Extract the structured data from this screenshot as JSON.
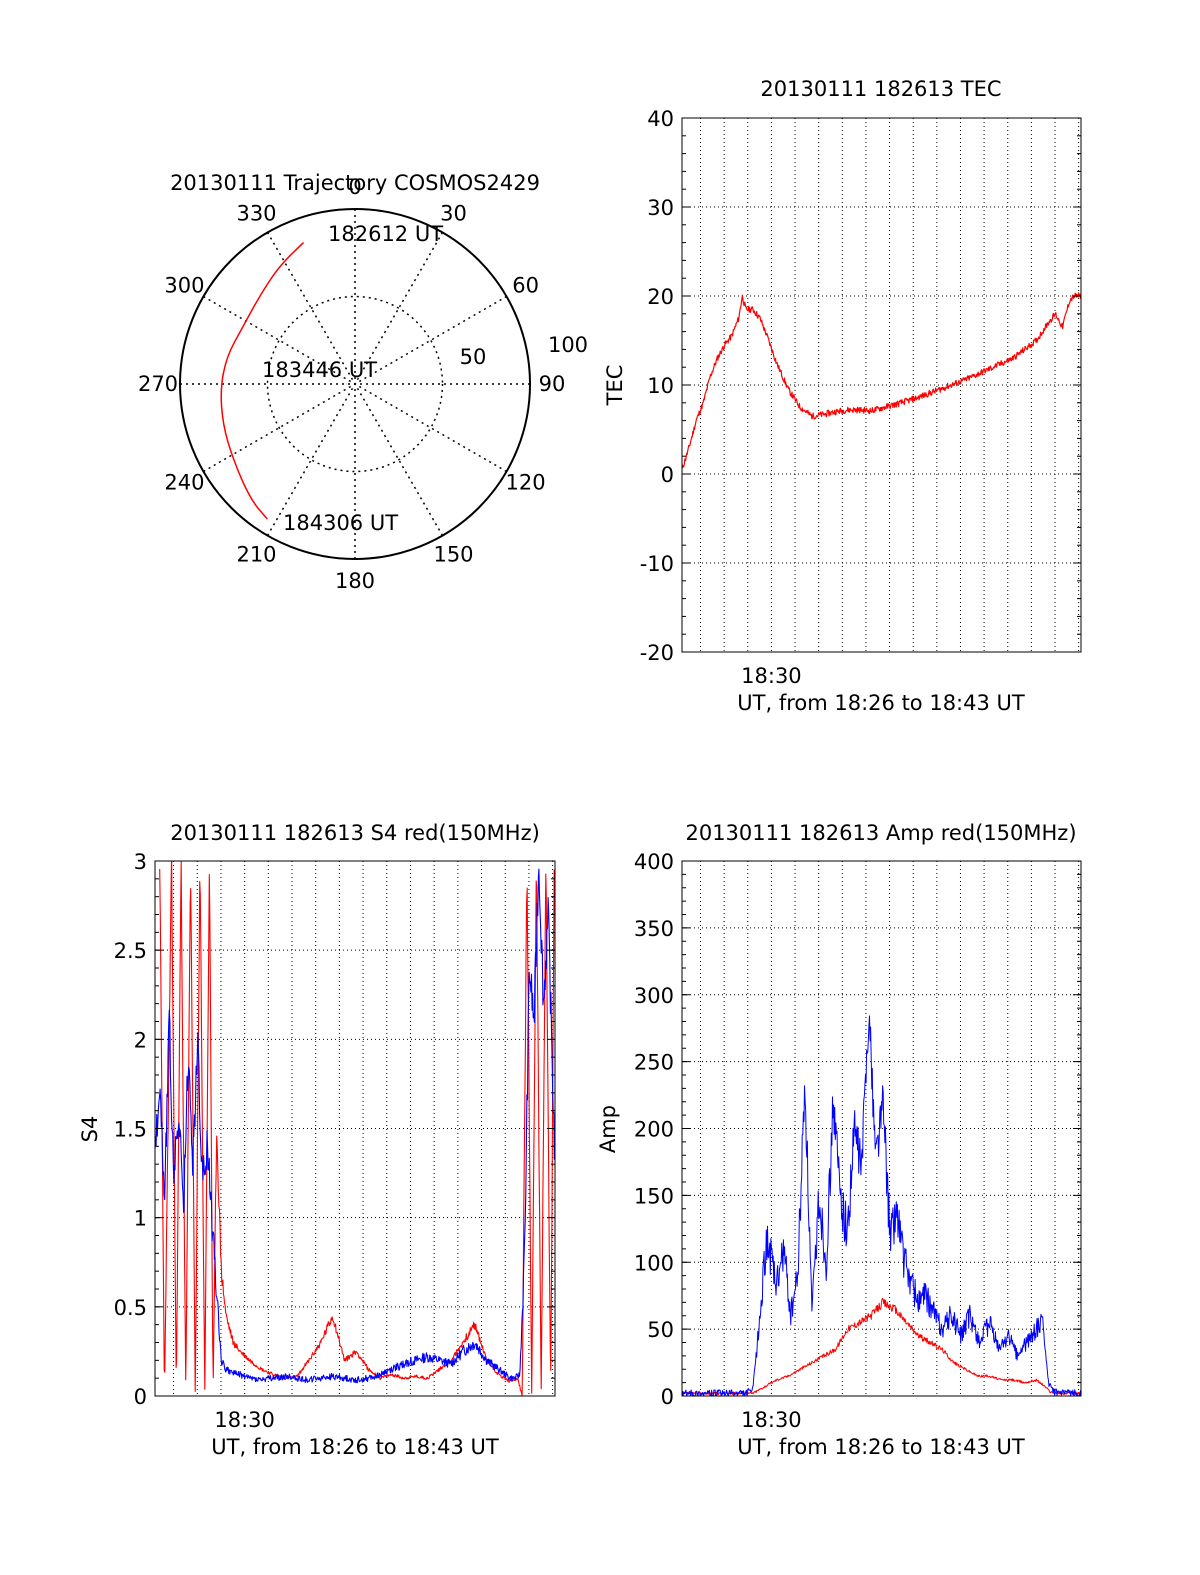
{
  "chart_data": [
    {
      "type": "polar",
      "title": "20130111 Trajectory COSMOS2429",
      "angle_labels": [
        "0",
        "30",
        "60",
        "90",
        "120",
        "150",
        "180",
        "210",
        "240",
        "270",
        "300",
        "330"
      ],
      "radius_labels": [
        "50",
        "100"
      ],
      "r_max": 100,
      "trajectory": {
        "color": "#ff0000",
        "points": [
          {
            "az": 340,
            "r": 86,
            "label": "182612 UT"
          },
          {
            "az": 327,
            "r": 80
          },
          {
            "az": 312,
            "r": 74
          },
          {
            "az": 296,
            "r": 72
          },
          {
            "az": 282,
            "r": 75
          },
          {
            "az": 268,
            "r": 77
          },
          {
            "az": 253,
            "r": 79
          },
          {
            "az": 238,
            "r": 82
          },
          {
            "az": 222,
            "r": 89
          },
          {
            "az": 213,
            "r": 92
          }
        ],
        "labels": [
          {
            "text": "182612 UT",
            "az": 355,
            "r": 85
          },
          {
            "text": "183446 UT",
            "az": 283,
            "r": 37
          },
          {
            "text": "184306 UT",
            "az": 206,
            "r": 85
          }
        ]
      }
    },
    {
      "type": "line",
      "title": "20130111 182613 TEC",
      "ylabel": "TEC",
      "xlabel": "UT, from 18:26 to 18:43 UT",
      "xlim": [
        "18:26:13",
        "18:43:06"
      ],
      "ylim": [
        -20,
        40
      ],
      "yticks": [
        -20,
        -10,
        0,
        10,
        20,
        30,
        40
      ],
      "xtick_labels": [
        {
          "time": "18:30:00",
          "label": "18:30"
        }
      ],
      "grid": true,
      "series": [
        {
          "color": "#ff0000",
          "x_minutes": [
            0,
            0.3,
            0.6,
            0.9,
            1.2,
            1.5,
            1.8,
            2.1,
            2.4,
            2.55,
            2.7,
            3.0,
            3.3,
            3.6,
            4.0,
            4.5,
            5.0,
            5.5,
            6.0,
            6.5,
            7.0,
            7.5,
            8.0,
            9.0,
            10.0,
            11.0,
            12.0,
            13.0,
            14.0,
            15.0,
            15.5,
            15.8,
            16.1,
            16.4,
            16.6,
            16.88
          ],
          "values": [
            0.5,
            3,
            6,
            8,
            11,
            13,
            14.5,
            15.5,
            17.5,
            20,
            18.5,
            18.5,
            17.5,
            15.5,
            12.5,
            9.5,
            7.5,
            6.5,
            6.7,
            7,
            7.2,
            7.2,
            7.1,
            7.8,
            8.6,
            9.6,
            10.6,
            11.8,
            13,
            15,
            17,
            18,
            16.5,
            19.5,
            20,
            20
          ]
        }
      ]
    },
    {
      "type": "line",
      "title": "20130111 182613 S4 red(150MHz)",
      "ylabel": "S4",
      "xlabel": "UT, from 18:26 to 18:43 UT",
      "xlim": [
        "18:26:13",
        "18:43:06"
      ],
      "ylim": [
        0,
        3
      ],
      "yticks": [
        "0",
        "0.5",
        "1",
        "1.5",
        "2",
        "2.5",
        "3"
      ],
      "xtick_labels": [
        {
          "time": "18:30:00",
          "label": "18:30"
        }
      ],
      "grid": true,
      "series": [
        {
          "color": "#ff0000",
          "x_minutes": [
            0.2,
            0.4,
            0.7,
            0.9,
            1.1,
            1.3,
            1.5,
            1.7,
            1.9,
            2.1,
            2.3,
            2.45,
            2.6,
            2.8,
            3.0,
            3.3,
            3.6,
            4.0,
            4.5,
            5.0,
            5.5,
            6.0,
            6.5,
            7.0,
            7.5,
            8.0,
            8.5,
            9.0,
            9.5,
            10.0,
            10.5,
            11.0,
            11.5,
            12.0,
            12.5,
            13.0,
            13.5,
            14.0,
            14.5,
            15.0,
            15.3,
            15.5,
            15.7,
            15.9,
            16.1,
            16.3,
            16.5,
            16.7,
            16.85
          ],
          "values": [
            3,
            0,
            3,
            0,
            3,
            0,
            3,
            0,
            3,
            0,
            3,
            0,
            1.5,
            0.7,
            0.45,
            0.3,
            0.25,
            0.2,
            0.15,
            0.12,
            0.1,
            0.11,
            0.2,
            0.3,
            0.45,
            0.2,
            0.25,
            0.15,
            0.1,
            0.12,
            0.1,
            0.11,
            0.1,
            0.15,
            0.2,
            0.3,
            0.4,
            0.2,
            0.12,
            0.08,
            0.1,
            0,
            3,
            0,
            3,
            0,
            3,
            0,
            3
          ]
        },
        {
          "color": "#0000ff",
          "x_minutes": [
            0,
            0.2,
            0.4,
            0.6,
            0.8,
            1.0,
            1.2,
            1.4,
            1.6,
            1.8,
            2.0,
            2.2,
            2.4,
            2.6,
            2.8,
            3.0,
            3.3,
            3.6,
            4.0,
            4.5,
            5.0,
            5.5,
            6.0,
            6.5,
            7.0,
            7.5,
            8.0,
            8.5,
            9.0,
            9.5,
            10.0,
            10.5,
            11.0,
            11.5,
            12.0,
            12.5,
            13.0,
            13.5,
            14.0,
            14.5,
            15.0,
            15.2,
            15.4,
            15.6,
            15.8,
            16.0,
            16.2,
            16.4,
            16.6,
            16.88
          ],
          "values": [
            1.3,
            1.8,
            1.1,
            2.1,
            1.2,
            1.6,
            1.0,
            1.9,
            1.3,
            2.0,
            1.2,
            1.4,
            1.0,
            0.6,
            0.2,
            0.15,
            0.13,
            0.12,
            0.1,
            0.09,
            0.1,
            0.11,
            0.1,
            0.09,
            0.1,
            0.11,
            0.1,
            0.09,
            0.1,
            0.12,
            0.15,
            0.18,
            0.2,
            0.22,
            0.2,
            0.18,
            0.25,
            0.3,
            0.2,
            0.15,
            0.1,
            0.1,
            0.12,
            0.8,
            2.4,
            2.1,
            3,
            2.2,
            2.7,
            1.3
          ]
        }
      ]
    },
    {
      "type": "line",
      "title": "20130111 182613 Amp red(150MHz)",
      "ylabel": "Amp",
      "xlabel": "UT, from 18:26 to 18:43 UT",
      "xlim": [
        "18:26:13",
        "18:43:06"
      ],
      "ylim": [
        0,
        400
      ],
      "yticks": [
        0,
        50,
        100,
        150,
        200,
        250,
        300,
        350,
        400
      ],
      "xtick_labels": [
        {
          "time": "18:30:00",
          "label": "18:30"
        }
      ],
      "grid": true,
      "series": [
        {
          "color": "#ff0000",
          "x_minutes": [
            0,
            3,
            3.3,
            3.6,
            4.0,
            4.5,
            5.0,
            5.5,
            6.0,
            6.5,
            7.0,
            7.5,
            8.0,
            8.5,
            9.0,
            9.5,
            10.0,
            10.5,
            11.0,
            11.5,
            12.0,
            12.5,
            13.0,
            13.5,
            14.0,
            14.5,
            15.0,
            15.3,
            15.6,
            16.0,
            16.88
          ],
          "values": [
            2,
            2,
            5,
            8,
            12,
            15,
            20,
            25,
            30,
            35,
            50,
            55,
            60,
            70,
            65,
            55,
            45,
            40,
            35,
            25,
            20,
            15,
            15,
            12,
            12,
            10,
            12,
            8,
            3,
            2,
            2
          ]
        },
        {
          "color": "#0000ff",
          "x_minutes": [
            0,
            2.7,
            3.0,
            3.3,
            3.6,
            4.0,
            4.3,
            4.6,
            4.9,
            5.2,
            5.5,
            5.8,
            6.1,
            6.4,
            6.7,
            7.0,
            7.3,
            7.6,
            7.9,
            8.2,
            8.5,
            8.8,
            9.1,
            9.4,
            9.7,
            10.0,
            10.3,
            10.6,
            11.0,
            11.4,
            11.8,
            12.2,
            12.6,
            13.0,
            13.4,
            13.8,
            14.2,
            14.6,
            15.0,
            15.3,
            15.5,
            15.7,
            16.0,
            16.88
          ],
          "values": [
            2,
            2,
            5,
            60,
            120,
            80,
            110,
            60,
            90,
            235,
            60,
            150,
            100,
            220,
            150,
            120,
            200,
            170,
            290,
            180,
            220,
            120,
            140,
            100,
            85,
            70,
            75,
            65,
            50,
            60,
            45,
            60,
            40,
            55,
            35,
            45,
            30,
            40,
            50,
            55,
            10,
            3,
            2,
            2
          ]
        }
      ]
    }
  ]
}
